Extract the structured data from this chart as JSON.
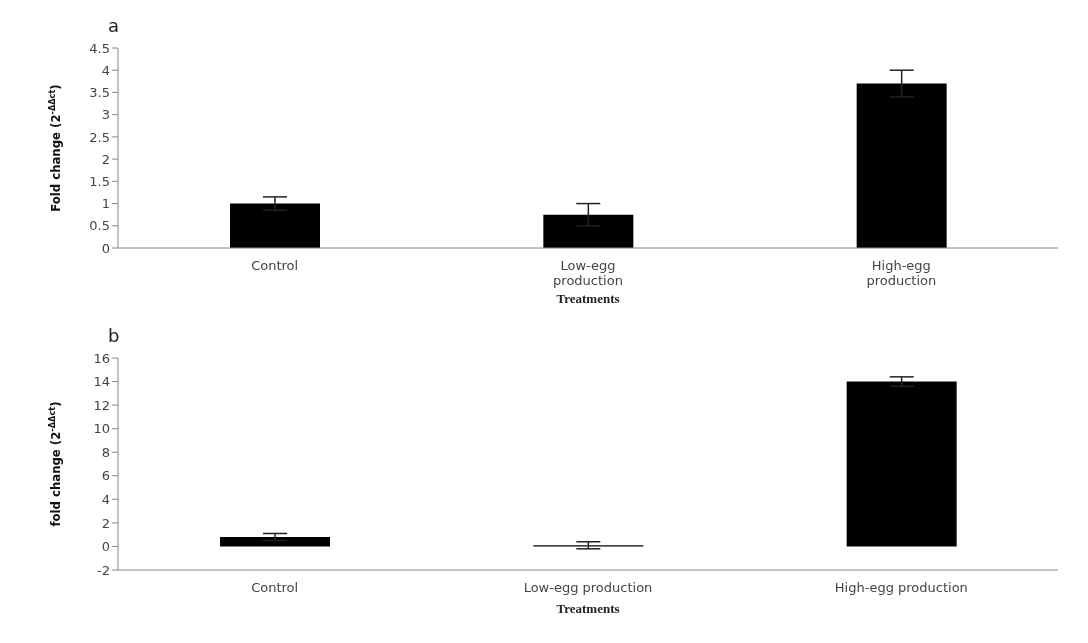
{
  "chart_data": [
    {
      "type": "bar",
      "title": "a",
      "xlabel": "Treatments",
      "ylabel": "Fold change (2$^{-ΔΔct}$)",
      "categories": [
        "Control",
        "Low-egg production",
        "High-egg production"
      ],
      "values": [
        1.0,
        0.75,
        3.7
      ],
      "errors": [
        0.15,
        0.25,
        0.3
      ],
      "color": "#000000",
      "ylim": [
        0,
        4.5
      ],
      "yticks": [
        0,
        0.5,
        1,
        1.5,
        2,
        2.5,
        3,
        3.5,
        4,
        4.5
      ],
      "grid": false,
      "legend": false
    },
    {
      "type": "bar",
      "title": "b",
      "xlabel": "Treatments",
      "ylabel": "fold change (2$^{-ΔΔct}$)",
      "categories": [
        "Control",
        "Low-egg production",
        "High-egg production"
      ],
      "values": [
        0.8,
        0.1,
        14
      ],
      "errors": [
        0.3,
        0.3,
        0.4
      ],
      "color": "#000000",
      "ylim": [
        -2,
        16
      ],
      "yticks": [
        -2,
        0,
        2,
        4,
        6,
        8,
        10,
        12,
        14,
        16
      ],
      "grid": false,
      "legend": false
    }
  ]
}
